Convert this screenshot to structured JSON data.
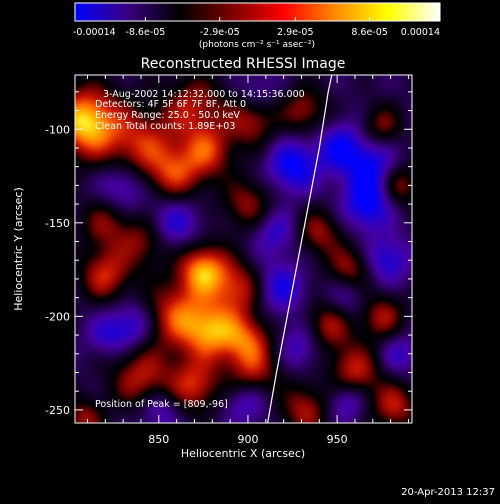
{
  "colorbar": {
    "tick_labels": [
      "-0.00014",
      "-8.6e-05",
      "-2.9e-05",
      "2.9e-05",
      "8.6e-05",
      "0.00014"
    ],
    "tick_values": [
      -0.00014,
      -8.6e-05,
      -2.9e-05,
      2.9e-05,
      8.6e-05,
      0.00014
    ],
    "range": [
      -0.00014,
      0.00014
    ],
    "units": "(photons cm⁻² s⁻¹ asec⁻²)",
    "colors": [
      "#0000ff",
      "#3a0082",
      "#000000",
      "#7a0000",
      "#ff0000",
      "#ff8c00",
      "#ffff00",
      "#ffffff"
    ]
  },
  "chart_data": {
    "type": "heatmap",
    "title": "Reconstructed RHESSI Image",
    "xlabel": "Heliocentric X (arcsec)",
    "ylabel": "Heliocentric Y (arcsec)",
    "xlim": [
      803,
      992
    ],
    "ylim": [
      -257,
      -71
    ],
    "x_ticks": [
      850,
      900,
      950
    ],
    "x_tick_labels": [
      "850",
      "900",
      "950"
    ],
    "y_ticks": [
      -250,
      -200,
      -150,
      -100
    ],
    "y_tick_labels": [
      "-250",
      "-200",
      "-150",
      "-100"
    ],
    "annotations": [
      "3-Aug-2002 14:12:32.000 to 14:15:36.000",
      "Detectors: 4F 5F 6F 7F 8F, Att 0",
      "Energy Range: 25.0 - 50.0 keV",
      "Clean    Total counts: 1.89E+03"
    ],
    "peak_label": "Position of Peak = [809,-96]",
    "peak": [
      809,
      -96
    ],
    "limb_curve": [
      [
        911,
        -257
      ],
      [
        916,
        -230
      ],
      [
        922,
        -200
      ],
      [
        928,
        -170
      ],
      [
        934,
        -140
      ],
      [
        940,
        -110
      ],
      [
        945,
        -80
      ],
      [
        947,
        -71
      ]
    ],
    "blobs": [
      {
        "x": 809,
        "y": -96,
        "v": 1.0,
        "s": 13
      },
      {
        "x": 840,
        "y": -110,
        "v": 0.55,
        "s": 15
      },
      {
        "x": 860,
        "y": -125,
        "v": 0.45,
        "s": 11
      },
      {
        "x": 878,
        "y": -112,
        "v": 0.5,
        "s": 10
      },
      {
        "x": 870,
        "y": -88,
        "v": 0.45,
        "s": 12
      },
      {
        "x": 902,
        "y": -95,
        "v": 0.45,
        "s": 10
      },
      {
        "x": 900,
        "y": -140,
        "v": 0.4,
        "s": 10
      },
      {
        "x": 820,
        "y": -150,
        "v": 0.35,
        "s": 10
      },
      {
        "x": 842,
        "y": -160,
        "v": 0.4,
        "s": 10
      },
      {
        "x": 875,
        "y": -175,
        "v": 0.85,
        "s": 10
      },
      {
        "x": 895,
        "y": -185,
        "v": 0.5,
        "s": 10
      },
      {
        "x": 820,
        "y": -178,
        "v": 0.55,
        "s": 10
      },
      {
        "x": 860,
        "y": -200,
        "v": 0.6,
        "s": 13
      },
      {
        "x": 880,
        "y": -208,
        "v": 0.7,
        "s": 11
      },
      {
        "x": 900,
        "y": -213,
        "v": 0.55,
        "s": 10
      },
      {
        "x": 840,
        "y": -233,
        "v": 0.5,
        "s": 12
      },
      {
        "x": 870,
        "y": -237,
        "v": 0.55,
        "s": 10
      },
      {
        "x": 903,
        "y": -232,
        "v": 0.45,
        "s": 10
      },
      {
        "x": 932,
        "y": -250,
        "v": 0.45,
        "s": 10
      },
      {
        "x": 960,
        "y": -230,
        "v": 0.55,
        "s": 10
      },
      {
        "x": 982,
        "y": -248,
        "v": 0.5,
        "s": 9
      },
      {
        "x": 945,
        "y": -205,
        "v": 0.5,
        "s": 10
      },
      {
        "x": 975,
        "y": -200,
        "v": 0.45,
        "s": 9
      },
      {
        "x": 957,
        "y": -175,
        "v": 0.45,
        "s": 9
      },
      {
        "x": 940,
        "y": -155,
        "v": 0.4,
        "s": 9
      },
      {
        "x": 985,
        "y": -130,
        "v": 0.45,
        "s": 8
      },
      {
        "x": 932,
        "y": -90,
        "v": 0.4,
        "s": 9
      },
      {
        "x": 975,
        "y": -98,
        "v": 0.35,
        "s": 8
      },
      {
        "x": 808,
        "y": -255,
        "v": 0.4,
        "s": 8
      },
      {
        "x": 830,
        "y": -130,
        "v": -0.6,
        "s": 10
      },
      {
        "x": 858,
        "y": -150,
        "v": -0.55,
        "s": 11
      },
      {
        "x": 925,
        "y": -120,
        "v": -0.7,
        "s": 10
      },
      {
        "x": 952,
        "y": -110,
        "v": -0.6,
        "s": 10
      },
      {
        "x": 967,
        "y": -140,
        "v": -0.7,
        "s": 10
      },
      {
        "x": 970,
        "y": -120,
        "v": -0.55,
        "s": 10
      },
      {
        "x": 978,
        "y": -170,
        "v": -0.55,
        "s": 9
      },
      {
        "x": 918,
        "y": -185,
        "v": -0.55,
        "s": 10
      },
      {
        "x": 955,
        "y": -190,
        "v": -0.4,
        "s": 9
      },
      {
        "x": 915,
        "y": -155,
        "v": -0.45,
        "s": 9
      },
      {
        "x": 835,
        "y": -205,
        "v": -0.55,
        "s": 9
      },
      {
        "x": 900,
        "y": -245,
        "v": -0.5,
        "s": 9
      },
      {
        "x": 930,
        "y": -215,
        "v": -0.45,
        "s": 9
      },
      {
        "x": 955,
        "y": -245,
        "v": -0.5,
        "s": 8
      },
      {
        "x": 850,
        "y": -250,
        "v": -0.45,
        "s": 8
      },
      {
        "x": 985,
        "y": -220,
        "v": -0.4,
        "s": 8
      },
      {
        "x": 905,
        "y": -80,
        "v": -0.35,
        "s": 8
      },
      {
        "x": 820,
        "y": -210,
        "v": -0.35,
        "s": 8
      }
    ]
  },
  "footer": {
    "date": "20-Apr-2013 12:37"
  }
}
